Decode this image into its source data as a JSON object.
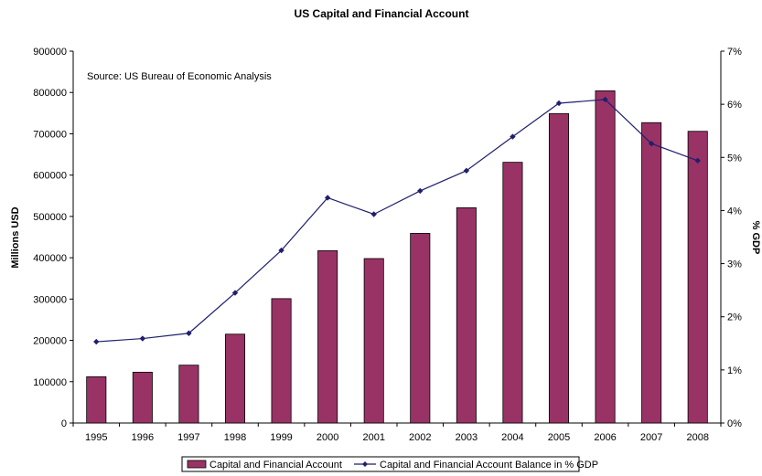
{
  "chart_data": {
    "type": "bar",
    "title": "US Capital and Financial Account",
    "annotation": "Source: US Bureau of Economic Analysis",
    "categories": [
      "1995",
      "1996",
      "1997",
      "1998",
      "1999",
      "2000",
      "2001",
      "2002",
      "2003",
      "2004",
      "2005",
      "2006",
      "2007",
      "2008"
    ],
    "ylabel_left": "Millions USD",
    "ylabel_right": "% GDP",
    "ylim_left": [
      0,
      900000
    ],
    "ylim_right": [
      0,
      7
    ],
    "yticks_left": [
      "0",
      "100000",
      "200000",
      "300000",
      "400000",
      "500000",
      "600000",
      "700000",
      "800000",
      "900000"
    ],
    "yticks_right": [
      "0%",
      "1%",
      "2%",
      "3%",
      "4%",
      "5%",
      "6%",
      "7%"
    ],
    "grid": false,
    "legend_position": "bottom",
    "series": [
      {
        "name": "Capital and Financial Account",
        "type": "bar",
        "axis": "left",
        "color": "#993366",
        "values": [
          112000,
          123000,
          140000,
          215000,
          301000,
          417000,
          398000,
          459000,
          521000,
          631000,
          749000,
          804000,
          727000,
          706000
        ]
      },
      {
        "name": "Capital and Financial Account Balance in % GDP",
        "type": "line",
        "axis": "right",
        "color": "#1f1f6e",
        "values": [
          1.53,
          1.59,
          1.69,
          2.45,
          3.25,
          4.24,
          3.93,
          4.37,
          4.75,
          5.39,
          6.02,
          6.09,
          5.26,
          4.94
        ]
      }
    ]
  }
}
